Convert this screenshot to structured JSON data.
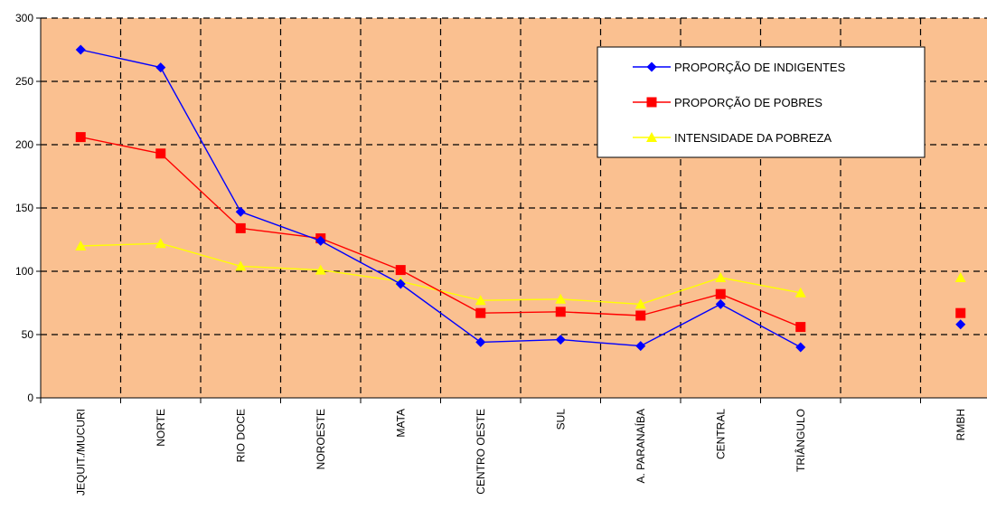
{
  "chart_data": {
    "type": "line",
    "title": "",
    "xlabel": "",
    "ylabel": "",
    "ylim": [
      0,
      300
    ],
    "yticks": [
      0,
      50,
      100,
      150,
      200,
      250,
      300
    ],
    "grid": true,
    "legend_position": "top-right",
    "background_color": "#FAC090",
    "categories": [
      "JEQUIT./MUCURI",
      "NORTE",
      "RIO DOCE",
      "NOROESTE",
      "MATA",
      "CENTRO OESTE",
      "SUL",
      "A. PARANAÍBA",
      "CENTRAL",
      "TRIÂNGULO",
      "",
      "RMBH"
    ],
    "series": [
      {
        "name": "PROPORÇÃO DE INDIGENTES",
        "color": "#0000FF",
        "marker": "diamond",
        "values": [
          275,
          261,
          147,
          124,
          90,
          44,
          46,
          41,
          74,
          40,
          null,
          58
        ]
      },
      {
        "name": "PROPORÇÃO DE POBRES",
        "color": "#FF0000",
        "marker": "square",
        "values": [
          206,
          193,
          134,
          126,
          101,
          67,
          68,
          65,
          82,
          56,
          null,
          67
        ]
      },
      {
        "name": "INTENSIDADE DA POBREZA",
        "color": "#FFFF00",
        "marker": "triangle",
        "values": [
          120,
          122,
          104,
          101,
          92,
          77,
          78,
          74,
          95,
          83,
          null,
          95
        ]
      }
    ]
  }
}
